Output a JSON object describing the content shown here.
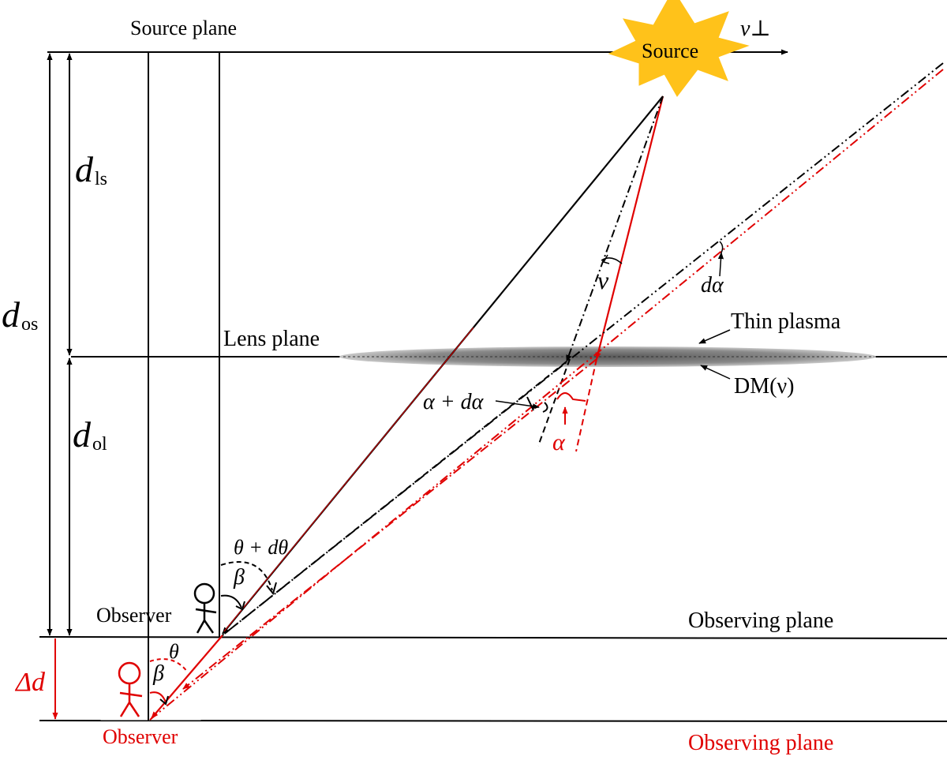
{
  "labels": {
    "source_plane": "Source plane",
    "source": "Source",
    "v_perp": "v⊥",
    "d_ls_main": "d",
    "d_ls_sub": "ls",
    "d_os_main": "d",
    "d_os_sub": "os",
    "d_ol_main": "d",
    "d_ol_sub": "ol",
    "lens_plane": "Lens plane",
    "thin_plasma": "Thin plasma",
    "dm_nu": "DM(ν)",
    "d_alpha": "dα",
    "nu": "ν",
    "alpha_plus_dalpha": "α + dα",
    "alpha": "α",
    "theta_plus_dtheta": "θ + dθ",
    "beta_upper": "β",
    "observer_upper": "Observer",
    "observing_plane_upper": "Observing plane",
    "delta_d": "Δd",
    "theta_lower": "θ",
    "beta_lower": "β",
    "observer_lower": "Observer",
    "observing_plane_lower": "Observing plane"
  },
  "colors": {
    "black": "#000000",
    "red": "#e00000",
    "sun_fill": "#ffc21a",
    "plasma": "#808080"
  }
}
